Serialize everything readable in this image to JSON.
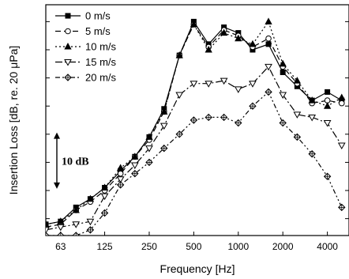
{
  "chart_data": {
    "type": "line",
    "xlabel": "Frequency [Hz]",
    "ylabel": "Insertion Loss [dB, re. 20 μPa]",
    "x_scale": "log",
    "xlim": [
      50,
      5600
    ],
    "ylim": [
      -3,
      38
    ],
    "xticks": [
      {
        "value": 63,
        "label": "63"
      },
      {
        "value": 125,
        "label": "125"
      },
      {
        "value": 250,
        "label": "250"
      },
      {
        "value": 500,
        "label": "500"
      },
      {
        "value": 1000,
        "label": "1000"
      },
      {
        "value": 2000,
        "label": "2000"
      },
      {
        "value": 4000,
        "label": "4000"
      }
    ],
    "yticks": [
      0,
      5,
      10,
      15,
      20,
      25,
      30,
      35
    ],
    "legend_position": "top-left",
    "scale_annotation": {
      "label": "10 dB",
      "from": 5.3,
      "to": 15.3
    },
    "x": [
      50,
      63,
      80,
      100,
      125,
      160,
      200,
      250,
      315,
      400,
      500,
      630,
      800,
      1000,
      1250,
      1600,
      2000,
      2500,
      3150,
      4000,
      5000
    ],
    "series": [
      {
        "name": "0 m/s",
        "values": [
          -1.0,
          -0.5,
          2.0,
          3.5,
          5.5,
          8.5,
          11.0,
          14.5,
          19.5,
          29.0,
          35.0,
          31.0,
          34.0,
          33.0,
          30.0,
          31.0,
          26.0,
          23.5,
          21.0,
          22.5,
          21.0
        ]
      },
      {
        "name": "5 m/s",
        "values": [
          -1.5,
          -1.0,
          1.5,
          3.0,
          5.0,
          8.0,
          11.0,
          14.0,
          19.0,
          29.0,
          34.5,
          30.5,
          33.5,
          32.5,
          30.5,
          32.0,
          27.0,
          24.0,
          20.5,
          21.0,
          20.5
        ]
      },
      {
        "name": "10 m/s",
        "values": [
          -1.0,
          -0.5,
          1.5,
          3.5,
          5.5,
          9.0,
          11.0,
          14.5,
          19.0,
          29.0,
          34.5,
          30.0,
          33.0,
          32.0,
          31.0,
          35.0,
          27.5,
          24.5,
          21.0,
          20.0,
          21.5
        ]
      },
      {
        "name": "15 m/s",
        "values": [
          -2.0,
          -1.5,
          -1.0,
          -0.5,
          4.0,
          7.0,
          9.5,
          12.5,
          16.5,
          22.0,
          24.0,
          24.0,
          24.5,
          23.0,
          24.0,
          27.0,
          22.0,
          18.5,
          18.0,
          17.0,
          13.0
        ]
      },
      {
        "name": "20 m/s",
        "values": [
          -3.0,
          -3.0,
          -3.0,
          -2.0,
          1.0,
          6.0,
          8.0,
          10.0,
          12.5,
          15.0,
          17.5,
          18.0,
          18.0,
          17.0,
          20.0,
          22.5,
          17.0,
          14.5,
          11.5,
          7.5,
          2.0
        ]
      }
    ],
    "series_styles": [
      {
        "color": "#000000",
        "dash": "",
        "marker": "square-filled"
      },
      {
        "color": "#000000",
        "dash": "7,4",
        "marker": "circle-open"
      },
      {
        "color": "#000000",
        "dash": "2,3",
        "marker": "triangle-up-filled"
      },
      {
        "color": "#000000",
        "dash": "9,3,2,3",
        "marker": "triangle-down-open"
      },
      {
        "color": "#000000",
        "dash": "6,3,2,3,2,3",
        "marker": "diamond-cross-open"
      }
    ]
  }
}
